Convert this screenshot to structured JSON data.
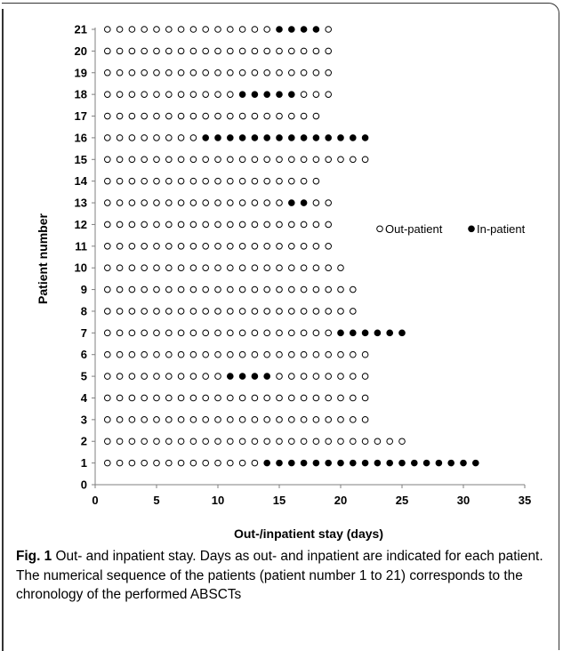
{
  "chart_data": {
    "type": "scatter",
    "xlabel": "Out-/inpatient stay (days)",
    "ylabel": "Patient number",
    "xlim": [
      0,
      35
    ],
    "ylim": [
      0,
      21
    ],
    "xticks": [
      "0",
      "5",
      "10",
      "15",
      "20",
      "25",
      "30",
      "35"
    ],
    "yticks": [
      "0",
      "1",
      "2",
      "3",
      "4",
      "5",
      "6",
      "7",
      "8",
      "9",
      "10",
      "11",
      "12",
      "13",
      "14",
      "15",
      "16",
      "17",
      "18",
      "19",
      "20",
      "21"
    ],
    "grid": false,
    "legend_position": "right",
    "series": [
      {
        "name": "Out-patient",
        "marker": "open-circle",
        "color": "#000000"
      },
      {
        "name": "In-patient",
        "marker": "filled-circle",
        "color": "#000000"
      }
    ],
    "patients": [
      {
        "patient": 1,
        "outpatient_days": [
          1,
          13
        ],
        "inpatient_days": [
          14,
          31
        ]
      },
      {
        "patient": 2,
        "outpatient_days": [
          1,
          25
        ],
        "inpatient_days": null
      },
      {
        "patient": 3,
        "outpatient_days": [
          1,
          22
        ],
        "inpatient_days": null
      },
      {
        "patient": 4,
        "outpatient_days": [
          1,
          22
        ],
        "inpatient_days": null
      },
      {
        "patient": 5,
        "outpatient_days": [
          1,
          10,
          15,
          22
        ],
        "inpatient_days": [
          11,
          14
        ]
      },
      {
        "patient": 6,
        "outpatient_days": [
          1,
          22
        ],
        "inpatient_days": null
      },
      {
        "patient": 7,
        "outpatient_days": [
          1,
          19
        ],
        "inpatient_days": [
          20,
          25
        ]
      },
      {
        "patient": 8,
        "outpatient_days": [
          1,
          21
        ],
        "inpatient_days": null
      },
      {
        "patient": 9,
        "outpatient_days": [
          1,
          21
        ],
        "inpatient_days": null
      },
      {
        "patient": 10,
        "outpatient_days": [
          1,
          20
        ],
        "inpatient_days": null
      },
      {
        "patient": 11,
        "outpatient_days": [
          1,
          19
        ],
        "inpatient_days": null
      },
      {
        "patient": 12,
        "outpatient_days": [
          1,
          19
        ],
        "inpatient_days": null
      },
      {
        "patient": 13,
        "outpatient_days": [
          1,
          15,
          18,
          19
        ],
        "inpatient_days": [
          16,
          17
        ]
      },
      {
        "patient": 14,
        "outpatient_days": [
          1,
          18
        ],
        "inpatient_days": null
      },
      {
        "patient": 15,
        "outpatient_days": [
          1,
          22
        ],
        "inpatient_days": null
      },
      {
        "patient": 16,
        "outpatient_days": [
          1,
          8
        ],
        "inpatient_days": [
          9,
          22
        ]
      },
      {
        "patient": 17,
        "outpatient_days": [
          1,
          18
        ],
        "inpatient_days": null
      },
      {
        "patient": 18,
        "outpatient_days": [
          1,
          11,
          17,
          19
        ],
        "inpatient_days": [
          12,
          16
        ]
      },
      {
        "patient": 19,
        "outpatient_days": [
          1,
          19
        ],
        "inpatient_days": null
      },
      {
        "patient": 20,
        "outpatient_days": [
          1,
          19
        ],
        "inpatient_days": null
      },
      {
        "patient": 21,
        "outpatient_days": [
          1,
          14,
          19,
          19
        ],
        "inpatient_days": [
          15,
          18
        ]
      }
    ]
  },
  "caption": {
    "label": "Fig. 1",
    "text": " Out- and inpatient stay. Days as out- and inpatient are indicated for each patient. The numerical sequence of the patients (patient number 1 to 21) corresponds to the chronology of the performed ABSCTs"
  }
}
